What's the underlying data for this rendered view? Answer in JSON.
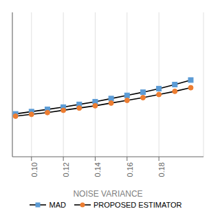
{
  "chart_data": {
    "type": "line",
    "x": [
      0.09,
      0.1,
      0.11,
      0.12,
      0.13,
      0.14,
      0.15,
      0.16,
      0.17,
      0.18,
      0.19,
      0.2
    ],
    "series": [
      {
        "name": "MAD",
        "color": "#5B9BD5",
        "marker": "square",
        "values": [
          0.095,
          0.1,
          0.105,
          0.11,
          0.116,
          0.122,
          0.129,
          0.136,
          0.143,
          0.151,
          0.16,
          0.17
        ]
      },
      {
        "name": "PROPOSED ESTIMATOR",
        "color": "#ED7D31",
        "marker": "circle",
        "values": [
          0.09,
          0.094,
          0.098,
          0.103,
          0.108,
          0.113,
          0.119,
          0.125,
          0.131,
          0.138,
          0.145,
          0.153
        ]
      }
    ],
    "color": "#000000",
    "xlabel": "NOISE VARIANCE",
    "xlim": [
      0.088,
      0.208
    ],
    "xticks": [
      {
        "value": 0.1,
        "label": "0.10"
      },
      0.12,
      0.14,
      0.16,
      0.18
    ],
    "ylim": [
      0.0,
      0.32
    ],
    "yticks": [],
    "tick_labels": "x",
    "grid": true,
    "legend": "bottom"
  }
}
